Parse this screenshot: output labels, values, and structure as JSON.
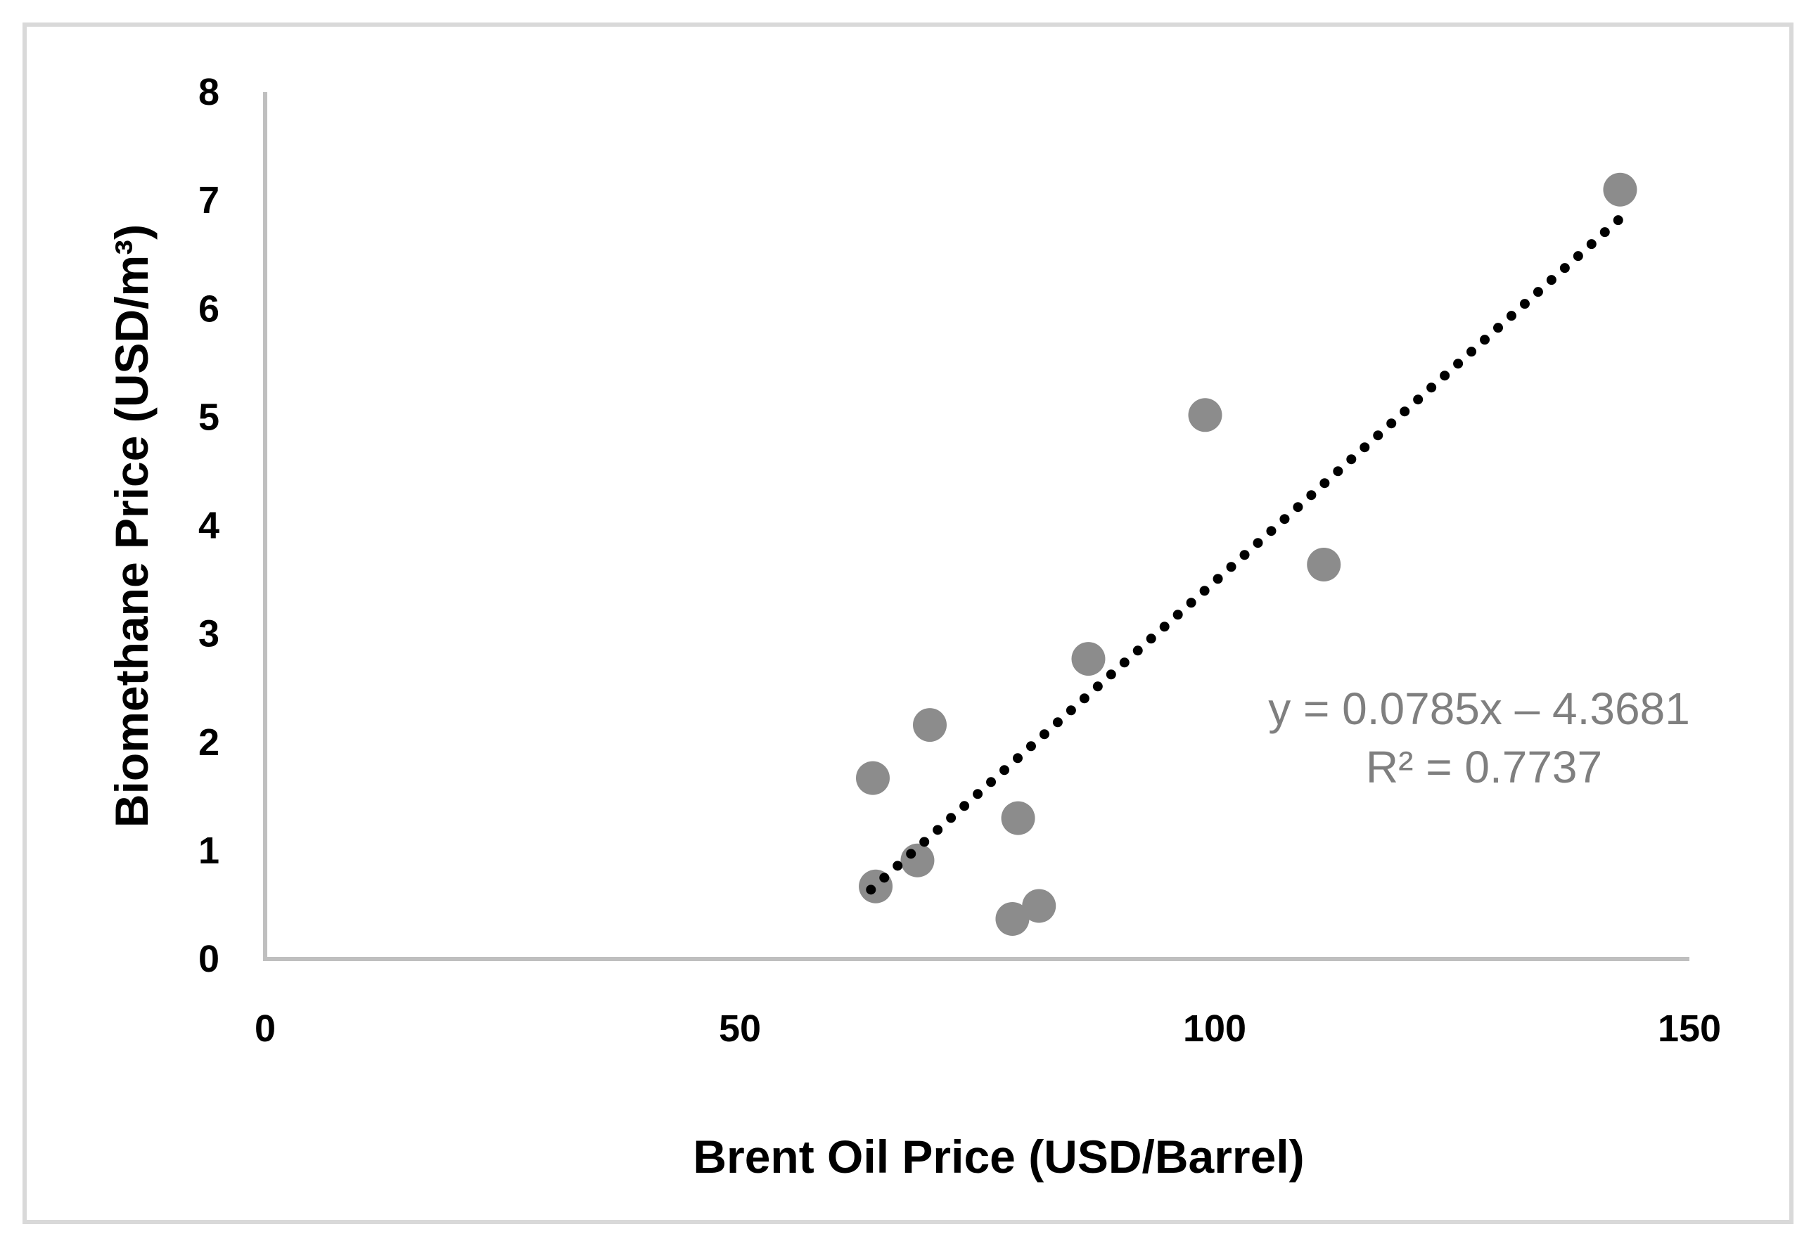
{
  "figure": {
    "background": "#FFFFFF",
    "border_color": "#D9D9D9"
  },
  "chart_data": {
    "type": "scatter",
    "title": "",
    "xlabel": "Brent Oil Price (USD/Barrel)",
    "ylabel": "Biomethane Price (USD/m³)",
    "xlim": [
      0,
      150
    ],
    "ylim": [
      0,
      8
    ],
    "x_ticks": [
      0,
      50,
      100,
      150
    ],
    "y_ticks": [
      0,
      1,
      2,
      3,
      4,
      5,
      6,
      7,
      8
    ],
    "grid": false,
    "legend": false,
    "axis_color": "#BFBFBF",
    "tick_label_color": "#000000",
    "marker_color": "#8C8C8C",
    "points": [
      {
        "x": 142.7,
        "y": 7.1
      },
      {
        "x": 99.0,
        "y": 5.02
      },
      {
        "x": 111.5,
        "y": 3.64
      },
      {
        "x": 86.7,
        "y": 2.77
      },
      {
        "x": 70.0,
        "y": 2.16
      },
      {
        "x": 64.0,
        "y": 1.67
      },
      {
        "x": 79.3,
        "y": 1.3
      },
      {
        "x": 68.7,
        "y": 0.91
      },
      {
        "x": 64.3,
        "y": 0.67
      },
      {
        "x": 78.7,
        "y": 0.37
      },
      {
        "x": 81.5,
        "y": 0.49
      }
    ],
    "trendline": {
      "style": "dotted",
      "color": "#000000",
      "slope": 0.0785,
      "intercept": -4.3681,
      "x_start": 63.8,
      "x_end": 142.5
    },
    "annotation": {
      "line1": "y = 0.0785x – 4.3681",
      "line2": "R² = 0.7737",
      "color": "#7F7F7F"
    }
  }
}
